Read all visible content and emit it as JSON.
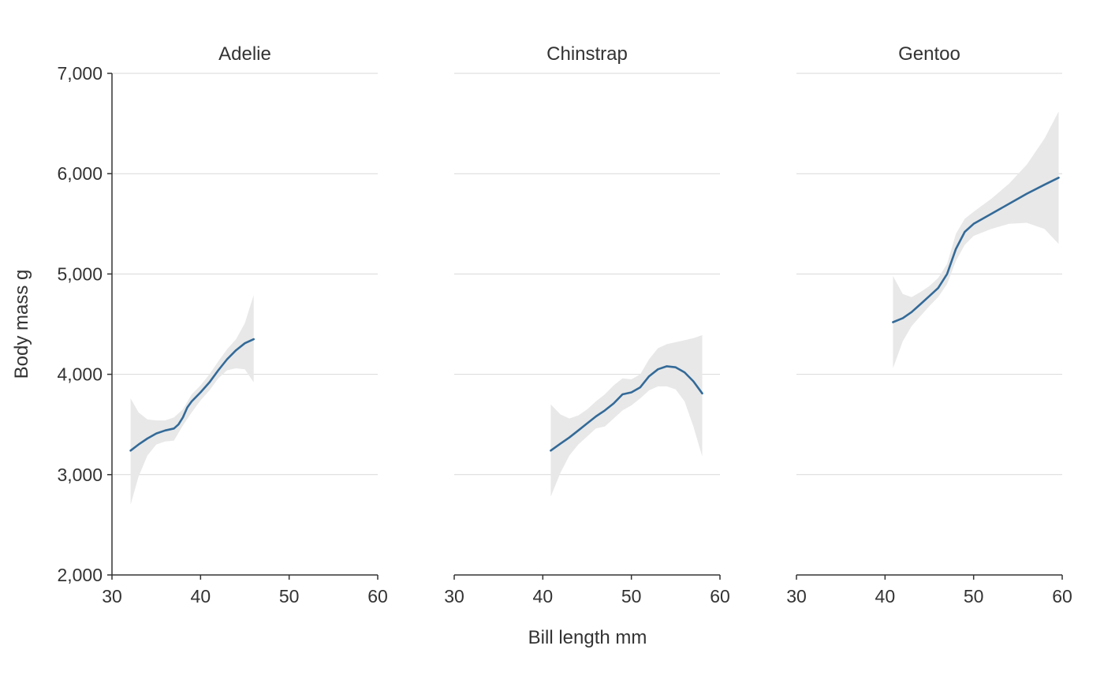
{
  "chart_data": {
    "type": "line",
    "xlabel": "Bill length mm",
    "ylabel": "Body mass g",
    "xlim": [
      30,
      60
    ],
    "ylim": [
      2000,
      7000
    ],
    "x_ticks": [
      "30",
      "40",
      "50",
      "60"
    ],
    "y_ticks": [
      "2,000",
      "3,000",
      "4,000",
      "5,000",
      "6,000",
      "7,000"
    ],
    "grid": "horizontal",
    "line_color": "#336a98",
    "band_color": "#e8e8e8",
    "grid_color": "#d9d9d9",
    "axis_color": "#333333",
    "facets": [
      {
        "title": "Adelie",
        "line": [
          [
            32.1,
            3240
          ],
          [
            33,
            3300
          ],
          [
            34,
            3360
          ],
          [
            35,
            3410
          ],
          [
            36,
            3440
          ],
          [
            37,
            3460
          ],
          [
            37.5,
            3500
          ],
          [
            38,
            3570
          ],
          [
            38.5,
            3670
          ],
          [
            39,
            3730
          ],
          [
            40,
            3820
          ],
          [
            41,
            3920
          ],
          [
            42,
            4040
          ],
          [
            43,
            4150
          ],
          [
            44,
            4240
          ],
          [
            45,
            4310
          ],
          [
            46,
            4350
          ]
        ],
        "upper": [
          [
            32.1,
            3760
          ],
          [
            33,
            3620
          ],
          [
            34,
            3550
          ],
          [
            35,
            3540
          ],
          [
            36,
            3540
          ],
          [
            37,
            3570
          ],
          [
            38,
            3650
          ],
          [
            39,
            3800
          ],
          [
            40,
            3890
          ],
          [
            41,
            4000
          ],
          [
            42,
            4130
          ],
          [
            43,
            4250
          ],
          [
            44,
            4350
          ],
          [
            45,
            4510
          ],
          [
            46,
            4790
          ]
        ],
        "lower": [
          [
            32.1,
            2700
          ],
          [
            33,
            2980
          ],
          [
            34,
            3190
          ],
          [
            35,
            3300
          ],
          [
            36,
            3330
          ],
          [
            37,
            3340
          ],
          [
            38,
            3490
          ],
          [
            39,
            3620
          ],
          [
            40,
            3740
          ],
          [
            41,
            3840
          ],
          [
            42,
            3960
          ],
          [
            43,
            4040
          ],
          [
            44,
            4060
          ],
          [
            45,
            4050
          ],
          [
            46,
            3920
          ]
        ]
      },
      {
        "title": "Chinstrap",
        "line": [
          [
            40.9,
            3240
          ],
          [
            42,
            3310
          ],
          [
            43,
            3370
          ],
          [
            44,
            3440
          ],
          [
            45,
            3510
          ],
          [
            46,
            3580
          ],
          [
            47,
            3640
          ],
          [
            48,
            3710
          ],
          [
            49,
            3800
          ],
          [
            50,
            3820
          ],
          [
            51,
            3870
          ],
          [
            52,
            3980
          ],
          [
            53,
            4050
          ],
          [
            54,
            4080
          ],
          [
            55,
            4070
          ],
          [
            56,
            4020
          ],
          [
            57,
            3930
          ],
          [
            58,
            3810
          ]
        ],
        "upper": [
          [
            40.9,
            3700
          ],
          [
            42,
            3600
          ],
          [
            43,
            3560
          ],
          [
            44,
            3590
          ],
          [
            45,
            3650
          ],
          [
            46,
            3730
          ],
          [
            47,
            3800
          ],
          [
            48,
            3890
          ],
          [
            49,
            3960
          ],
          [
            50,
            3950
          ],
          [
            51,
            4000
          ],
          [
            52,
            4150
          ],
          [
            53,
            4260
          ],
          [
            54,
            4300
          ],
          [
            55,
            4320
          ],
          [
            56,
            4340
          ],
          [
            57,
            4360
          ],
          [
            58,
            4390
          ]
        ],
        "lower": [
          [
            40.9,
            2780
          ],
          [
            42,
            3020
          ],
          [
            43,
            3190
          ],
          [
            44,
            3300
          ],
          [
            45,
            3380
          ],
          [
            46,
            3460
          ],
          [
            47,
            3480
          ],
          [
            48,
            3560
          ],
          [
            49,
            3640
          ],
          [
            50,
            3690
          ],
          [
            51,
            3760
          ],
          [
            52,
            3840
          ],
          [
            53,
            3880
          ],
          [
            54,
            3880
          ],
          [
            55,
            3850
          ],
          [
            56,
            3730
          ],
          [
            57,
            3480
          ],
          [
            58,
            3180
          ]
        ]
      },
      {
        "title": "Gentoo",
        "line": [
          [
            40.9,
            4520
          ],
          [
            42,
            4560
          ],
          [
            43,
            4620
          ],
          [
            44,
            4700
          ],
          [
            45,
            4780
          ],
          [
            46,
            4860
          ],
          [
            47,
            5000
          ],
          [
            48,
            5250
          ],
          [
            49,
            5420
          ],
          [
            50,
            5500
          ],
          [
            52,
            5600
          ],
          [
            54,
            5700
          ],
          [
            56,
            5800
          ],
          [
            58,
            5890
          ],
          [
            59.6,
            5960
          ]
        ],
        "upper": [
          [
            40.9,
            4980
          ],
          [
            42,
            4800
          ],
          [
            43,
            4770
          ],
          [
            44,
            4820
          ],
          [
            45,
            4880
          ],
          [
            46,
            4960
          ],
          [
            47,
            5100
          ],
          [
            48,
            5400
          ],
          [
            49,
            5550
          ],
          [
            50,
            5620
          ],
          [
            52,
            5750
          ],
          [
            54,
            5900
          ],
          [
            56,
            6090
          ],
          [
            58,
            6350
          ],
          [
            59.6,
            6620
          ]
        ],
        "lower": [
          [
            40.9,
            4060
          ],
          [
            42,
            4330
          ],
          [
            43,
            4480
          ],
          [
            44,
            4580
          ],
          [
            45,
            4680
          ],
          [
            46,
            4770
          ],
          [
            47,
            4900
          ],
          [
            48,
            5130
          ],
          [
            49,
            5290
          ],
          [
            50,
            5380
          ],
          [
            52,
            5450
          ],
          [
            54,
            5500
          ],
          [
            56,
            5510
          ],
          [
            58,
            5450
          ],
          [
            59.6,
            5300
          ]
        ]
      }
    ]
  }
}
